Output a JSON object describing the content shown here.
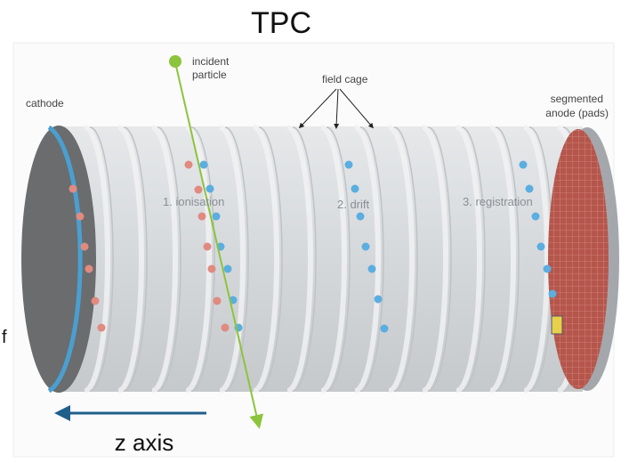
{
  "title": "TPC",
  "labels": {
    "incident_particle": [
      "incident",
      "particle"
    ],
    "field_cage": "field cage",
    "cathode": "cathode",
    "anode": [
      "segmented",
      "anode (pads)"
    ],
    "ionisation": "1. ionisation",
    "drift": "2. drift",
    "registration": "3. registration",
    "edge_text": "f",
    "z_axis": "z axis"
  }
}
